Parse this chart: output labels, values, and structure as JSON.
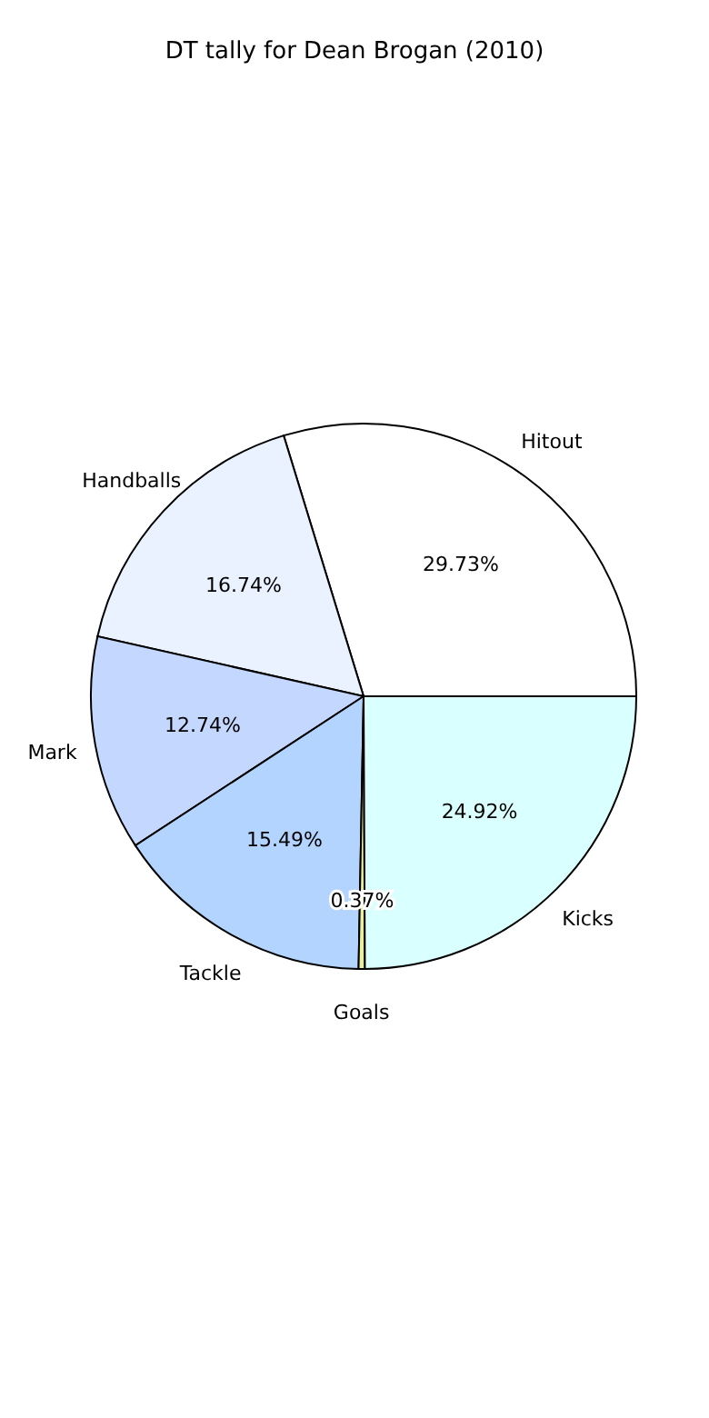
{
  "chart_data": {
    "type": "pie",
    "title": "DT tally for Dean Brogan (2010)",
    "categories": [
      "Hitout",
      "Handballs",
      "Mark",
      "Tackle",
      "Goals",
      "Kicks"
    ],
    "values": [
      29.73,
      16.74,
      12.74,
      15.49,
      0.37,
      24.92
    ],
    "value_labels": [
      "29.73%",
      "16.74%",
      "12.74%",
      "15.49%",
      "0.37%",
      "24.92%"
    ],
    "colors": [
      "#ffffff",
      "#eaf1ff",
      "#c4d8ff",
      "#b3d4ff",
      "#e8f0a0",
      "#d9ffff"
    ]
  }
}
